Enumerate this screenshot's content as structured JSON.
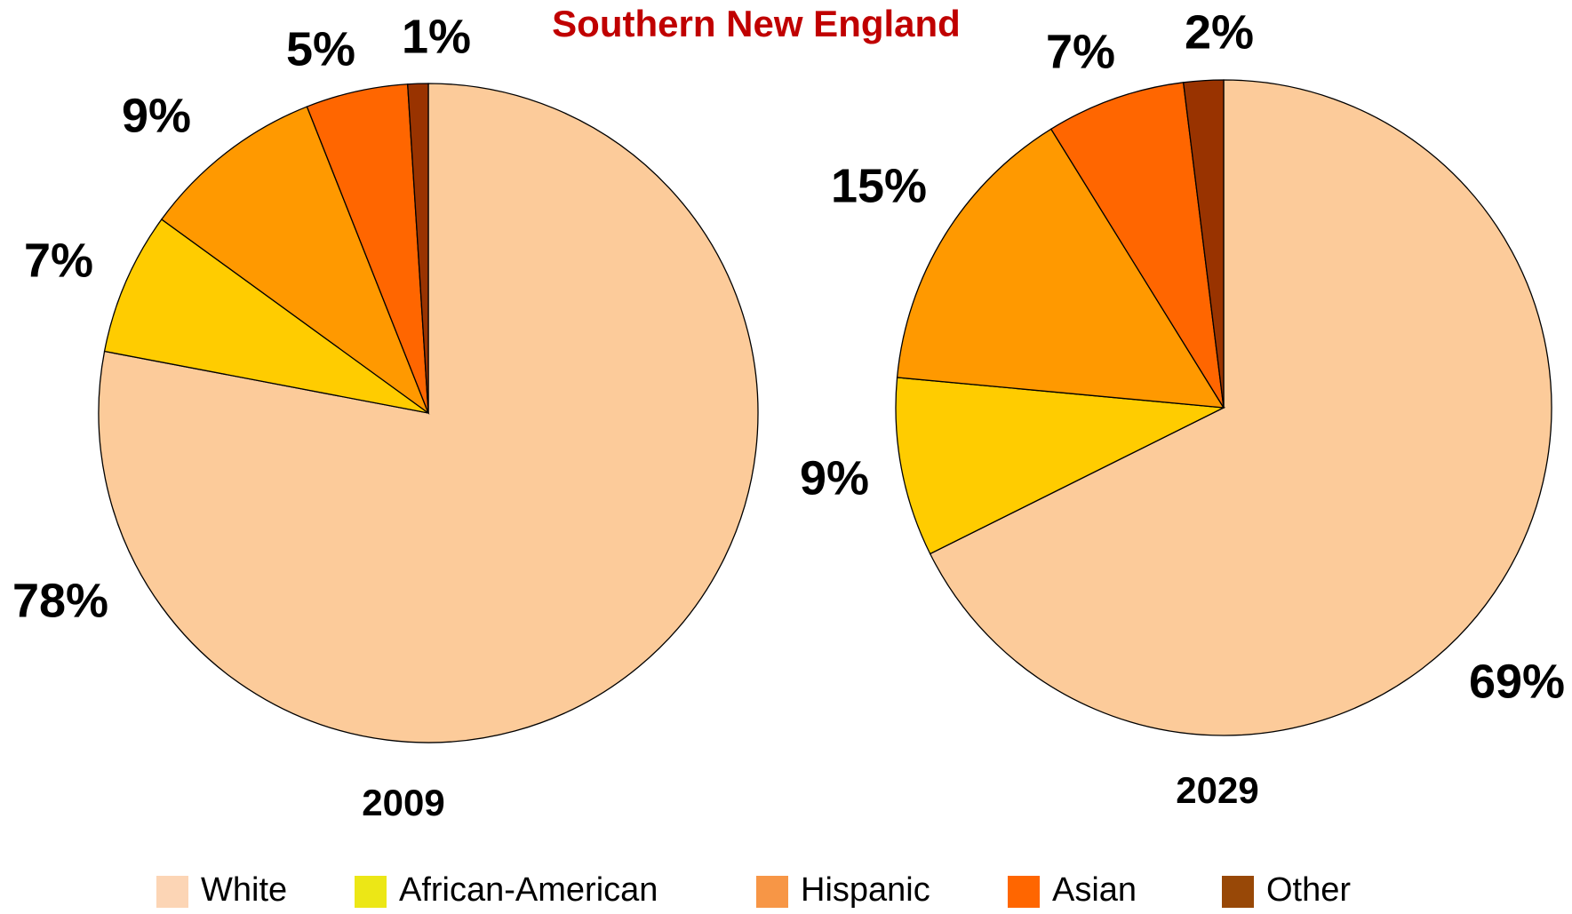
{
  "title": "Southern New England",
  "legend": {
    "names": [
      "White",
      "African-American",
      "Hispanic",
      "Asian",
      "Other"
    ],
    "colors": [
      "#fcd5b5",
      "#ece716",
      "#f79646",
      "#ff6600",
      "#984807"
    ]
  },
  "chart_data": [
    {
      "type": "pie",
      "title": "2009",
      "values": [
        78,
        7,
        9,
        5,
        1
      ],
      "value_labels": [
        "78%",
        "7%",
        "9%",
        "5%",
        "1%"
      ],
      "colors": [
        "#fccb9a",
        "#ffcc00",
        "#ff9900",
        "#ff6600",
        "#993300"
      ]
    },
    {
      "type": "pie",
      "title": "2029",
      "values": [
        69,
        9,
        15,
        7,
        2
      ],
      "value_labels": [
        "69%",
        "9%",
        "15%",
        "7%",
        "2%"
      ],
      "colors": [
        "#fccb9a",
        "#ffcc00",
        "#ff9900",
        "#ff6600",
        "#993300"
      ]
    }
  ]
}
